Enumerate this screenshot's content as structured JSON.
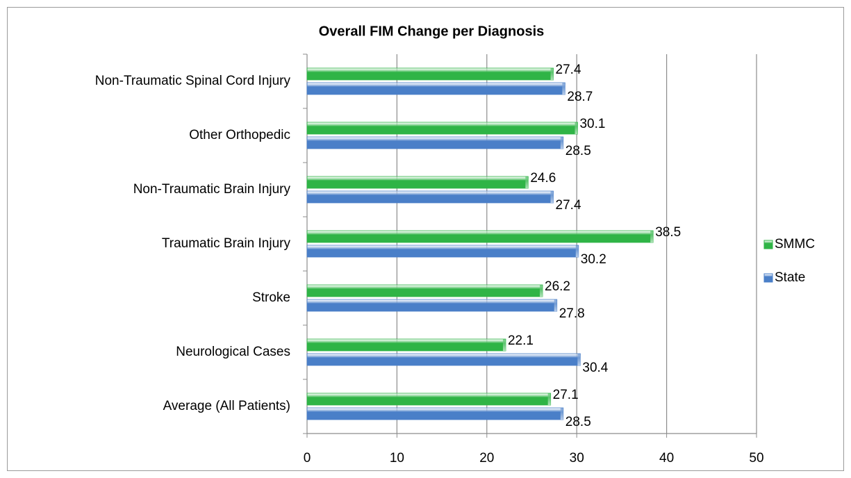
{
  "chart_data": {
    "type": "bar",
    "orientation": "horizontal",
    "title": "Overall FIM Change per Diagnosis",
    "categories": [
      "Non-Traumatic Spinal Cord Injury",
      "Other Orthopedic",
      "Non-Traumatic Brain Injury",
      "Traumatic Brain Injury",
      "Stroke",
      "Neurological Cases",
      "Average (All Patients)"
    ],
    "series": [
      {
        "name": "SMMC",
        "color": "#2fb446",
        "values": [
          27.4,
          30.1,
          24.6,
          38.5,
          26.2,
          22.1,
          27.1
        ]
      },
      {
        "name": "State",
        "color": "#4a7fc8",
        "values": [
          28.7,
          28.5,
          27.4,
          30.2,
          27.8,
          30.4,
          28.5
        ]
      }
    ],
    "xlim": [
      0,
      50
    ],
    "xticks": [
      0,
      10,
      20,
      30,
      40,
      50
    ],
    "grid": true,
    "legend": "right"
  }
}
